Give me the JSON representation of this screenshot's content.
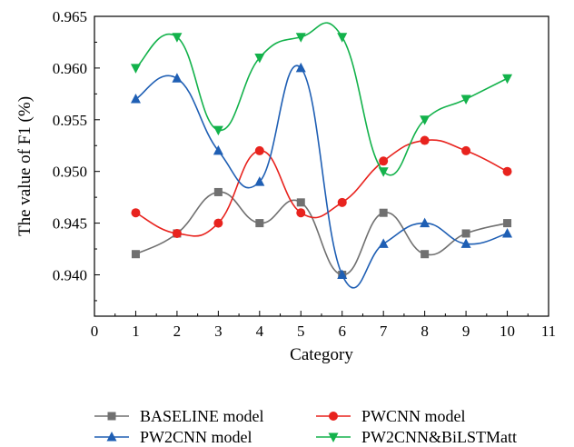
{
  "chart_data": {
    "type": "line",
    "title": "",
    "xlabel": "Category",
    "ylabel": "The value of F1 (%)",
    "xlim": [
      0,
      11
    ],
    "ylim": [
      0.936,
      0.965
    ],
    "x_ticks": [
      "0",
      "1",
      "2",
      "3",
      "4",
      "5",
      "6",
      "7",
      "8",
      "9",
      "10",
      "11"
    ],
    "y_ticks": [
      "0.940",
      "0.945",
      "0.950",
      "0.955",
      "0.960",
      "0.965"
    ],
    "grid": false,
    "legend_position": "bottom",
    "x": [
      1,
      2,
      3,
      4,
      5,
      6,
      7,
      8,
      9,
      10
    ],
    "series": [
      {
        "name": "BASELINE model",
        "color": "#707070",
        "marker": "square",
        "values": [
          0.942,
          0.944,
          0.948,
          0.945,
          0.947,
          0.94,
          0.946,
          0.942,
          0.944,
          0.945
        ]
      },
      {
        "name": "PWCNN model",
        "color": "#e8231e",
        "marker": "circle",
        "values": [
          0.946,
          0.944,
          0.945,
          0.952,
          0.946,
          0.947,
          0.951,
          0.953,
          0.952,
          0.95
        ]
      },
      {
        "name": "PW2CNN model",
        "color": "#1f5fb4",
        "marker": "triangle-up",
        "values": [
          0.957,
          0.959,
          0.952,
          0.949,
          0.96,
          0.94,
          0.943,
          0.945,
          0.943,
          0.944
        ]
      },
      {
        "name": "PW2CNN&BiLSTMatt",
        "color": "#13b24b",
        "marker": "triangle-down",
        "values": [
          0.96,
          0.963,
          0.954,
          0.961,
          0.963,
          0.963,
          0.95,
          0.955,
          0.957,
          0.959
        ]
      }
    ]
  }
}
